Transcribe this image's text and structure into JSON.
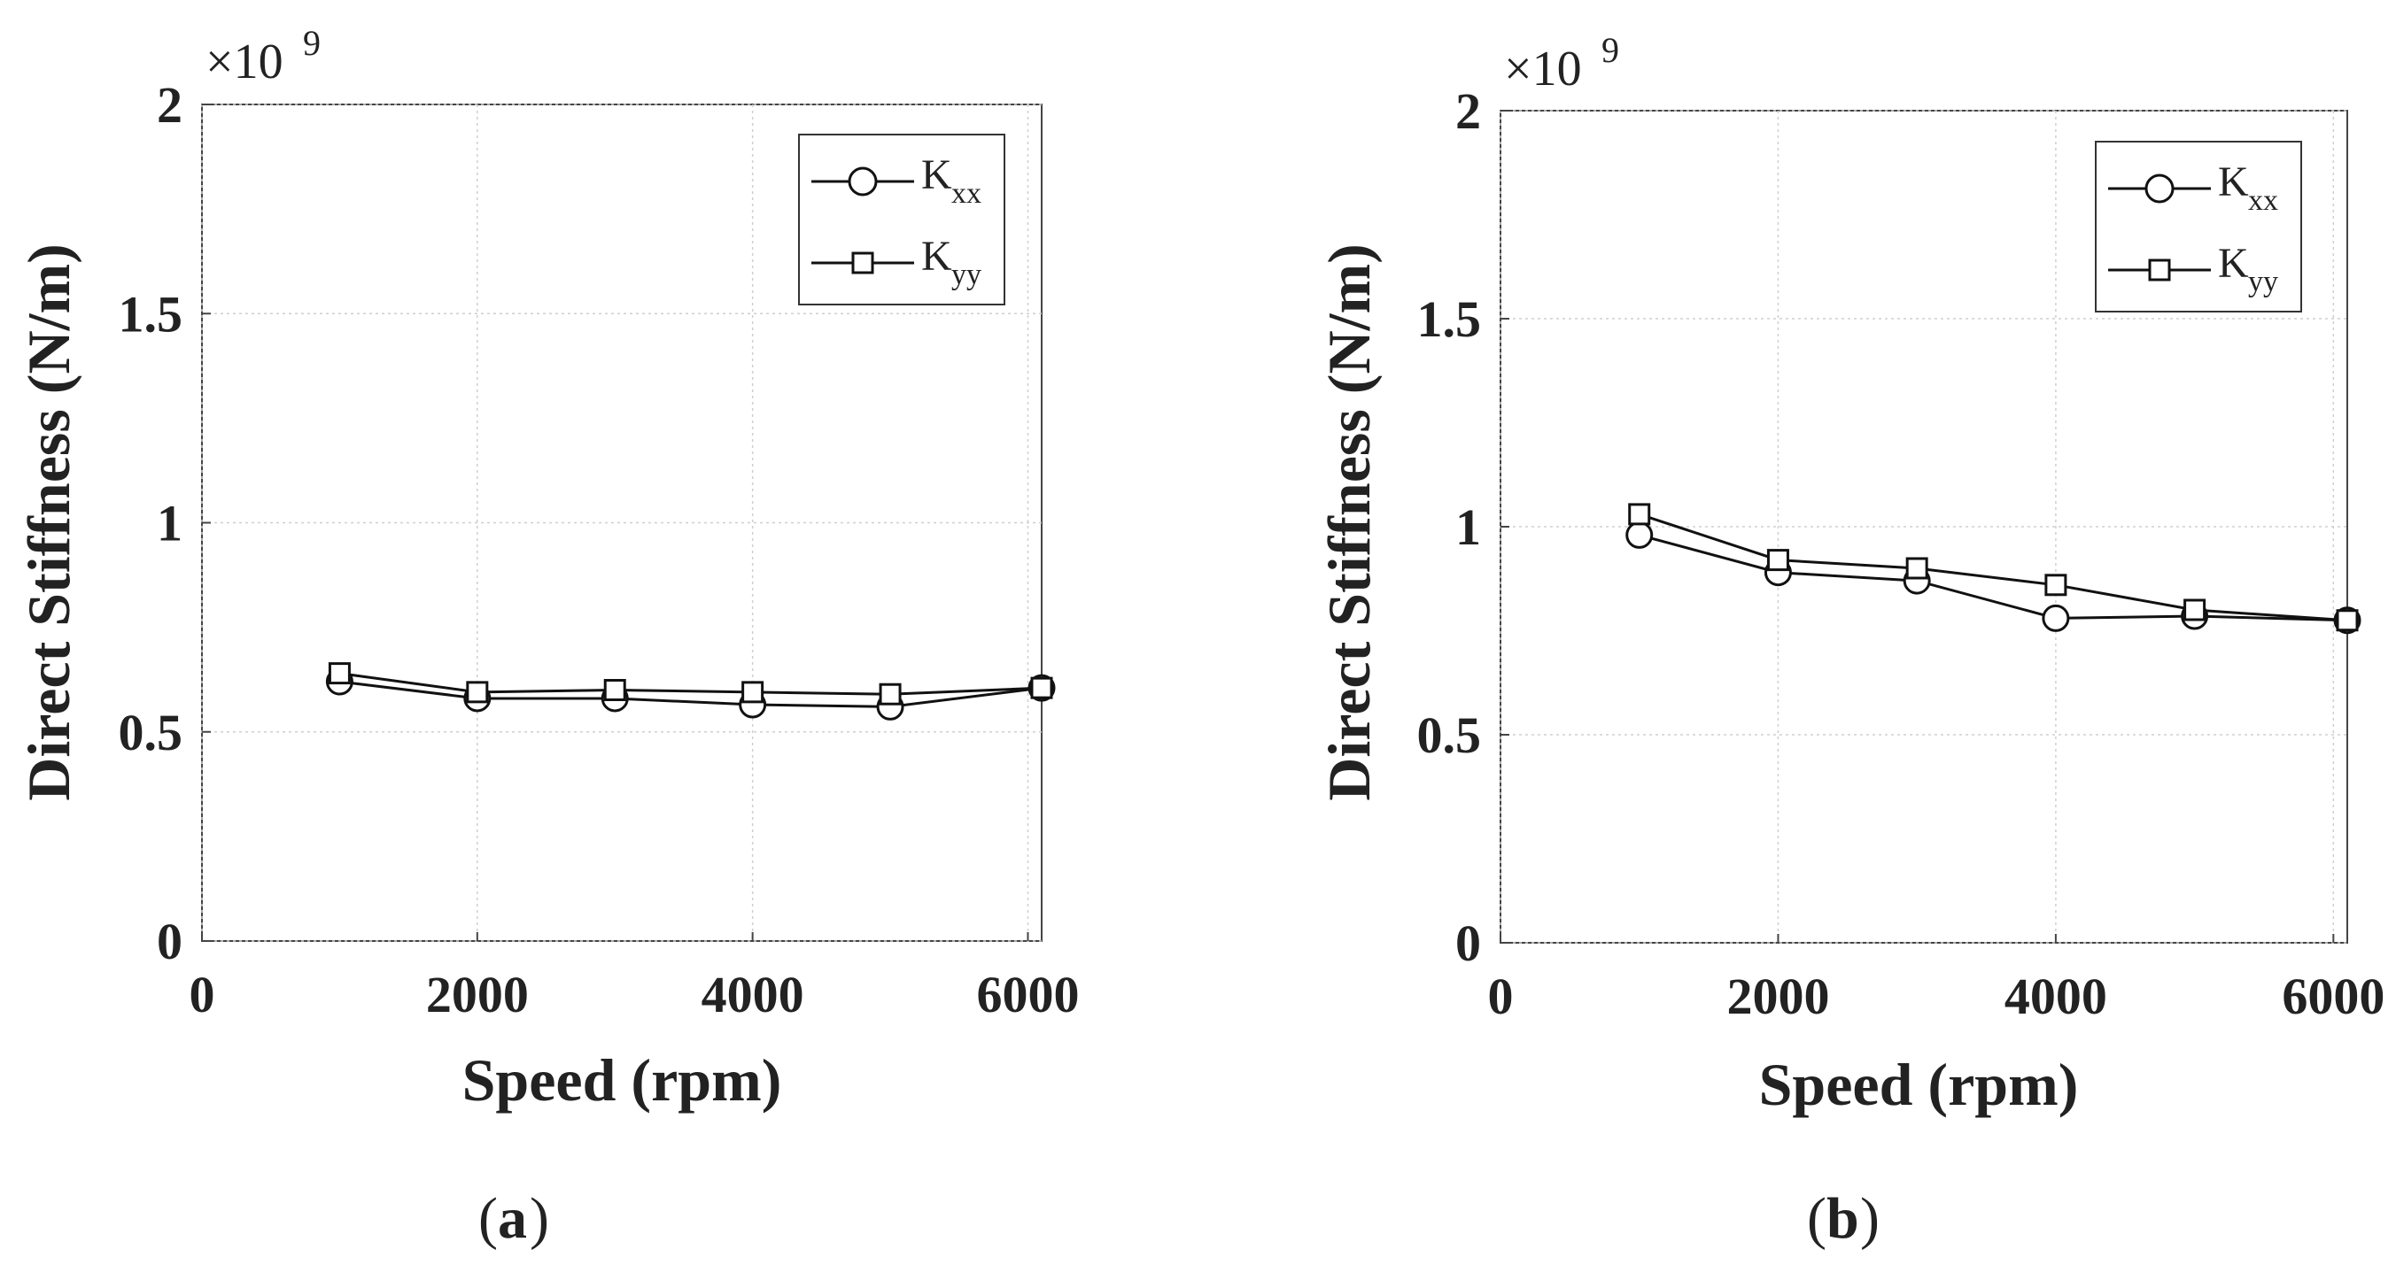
{
  "chart_data": [
    {
      "type": "line",
      "panel": "a",
      "caption_open": "(",
      "caption_letter": "a",
      "caption_close": ")",
      "xlabel": "Speed (rpm)",
      "ylabel": "Direct Stiffness (N/m)",
      "y_multiplier": "×10",
      "y_exponent": "9",
      "xlim": [
        0,
        6100
      ],
      "ylim": [
        0,
        2
      ],
      "xticks": [
        0,
        2000,
        4000,
        6000
      ],
      "xtick_labels": [
        "0",
        "2000",
        "4000",
        "6000"
      ],
      "yticks": [
        0,
        0.5,
        1,
        1.5,
        2
      ],
      "ytick_labels": [
        "0",
        "0.5",
        "1",
        "1.5",
        "2"
      ],
      "grid": true,
      "legend_position": "top-right",
      "series": [
        {
          "name": "K_xx",
          "label_main": "K",
          "label_sub": "xx",
          "marker": "circle",
          "x": [
            1000,
            2000,
            3000,
            4000,
            5000,
            6100
          ],
          "values": [
            0.62,
            0.58,
            0.58,
            0.565,
            0.56,
            0.605
          ]
        },
        {
          "name": "K_yy",
          "label_main": "K",
          "label_sub": "yy",
          "marker": "square",
          "x": [
            1000,
            2000,
            3000,
            4000,
            5000,
            6100
          ],
          "values": [
            0.64,
            0.595,
            0.6,
            0.595,
            0.59,
            0.605
          ]
        }
      ]
    },
    {
      "type": "line",
      "panel": "b",
      "caption_open": "(",
      "caption_letter": "b",
      "caption_close": ")",
      "xlabel": "Speed (rpm)",
      "ylabel": "Direct Stiffness (N/m)",
      "y_multiplier": "×10",
      "y_exponent": "9",
      "xlim": [
        0,
        6100
      ],
      "ylim": [
        0,
        2
      ],
      "xticks": [
        0,
        2000,
        4000,
        6000
      ],
      "xtick_labels": [
        "0",
        "2000",
        "4000",
        "6000"
      ],
      "yticks": [
        0,
        0.5,
        1,
        1.5,
        2
      ],
      "ytick_labels": [
        "0",
        "0.5",
        "1",
        "1.5",
        "2"
      ],
      "grid": true,
      "legend_position": "top-right",
      "series": [
        {
          "name": "K_xx",
          "label_main": "K",
          "label_sub": "xx",
          "marker": "circle",
          "x": [
            1000,
            2000,
            3000,
            4000,
            5000,
            6100
          ],
          "values": [
            0.98,
            0.89,
            0.87,
            0.78,
            0.785,
            0.775
          ]
        },
        {
          "name": "K_yy",
          "label_main": "K",
          "label_sub": "yy",
          "marker": "square",
          "x": [
            1000,
            2000,
            3000,
            4000,
            5000,
            6100
          ],
          "values": [
            1.03,
            0.92,
            0.9,
            0.86,
            0.8,
            0.775
          ]
        }
      ]
    }
  ]
}
